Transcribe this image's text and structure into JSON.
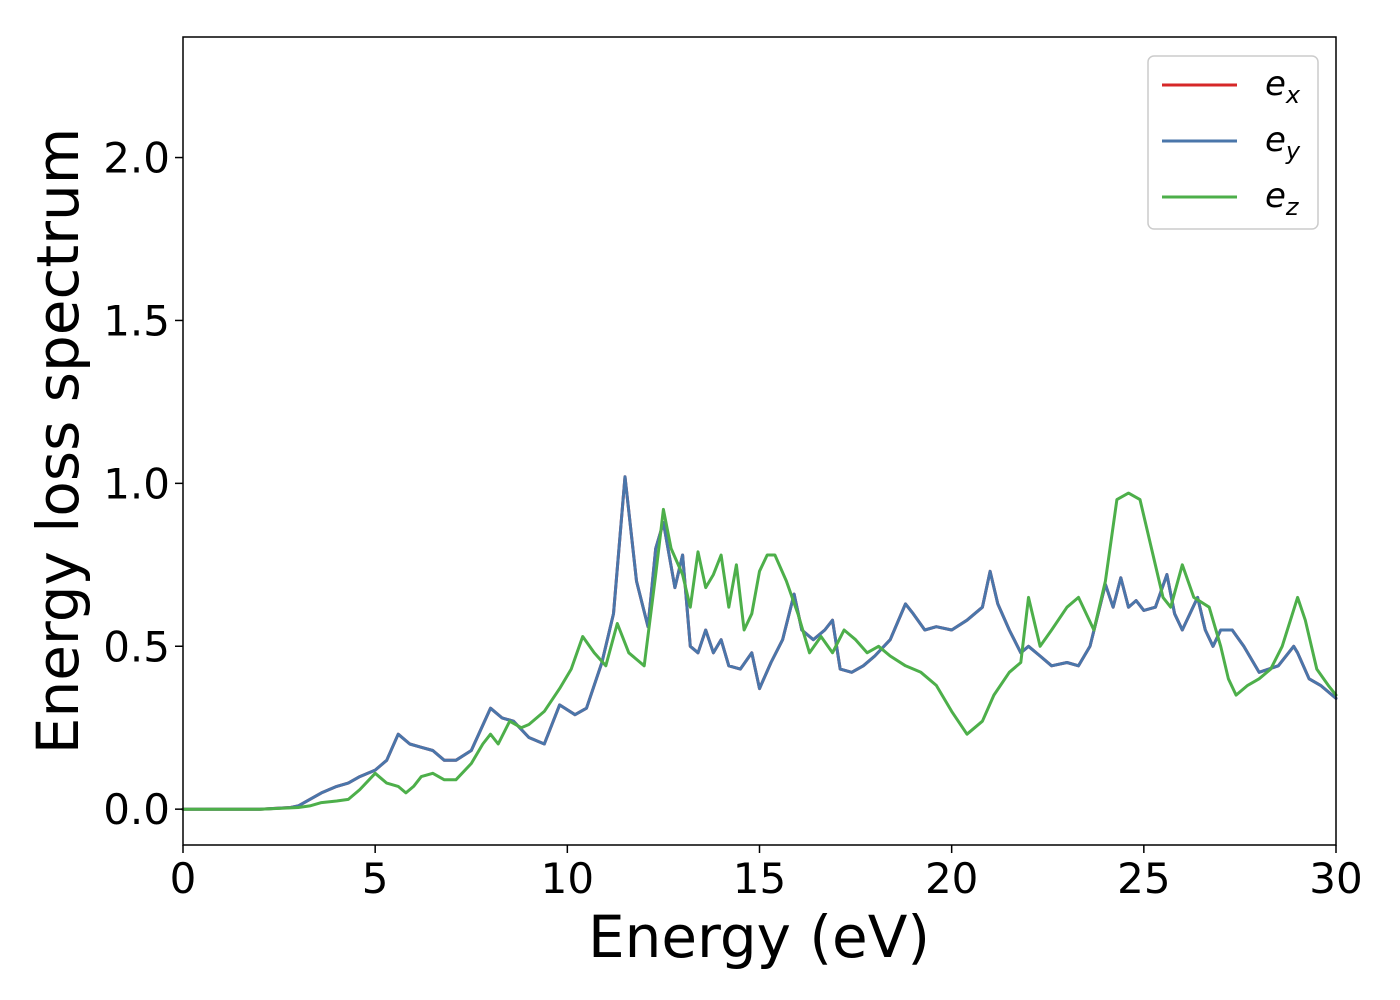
{
  "chart_data": {
    "type": "line",
    "title": "",
    "xlabel": "Energy (eV)",
    "ylabel": "Energy loss spectrum",
    "xlim": [
      0,
      30
    ],
    "ylim": [
      -0.11,
      2.37
    ],
    "xticks": [
      0,
      5,
      10,
      15,
      20,
      25,
      30
    ],
    "xtick_labels": [
      "0",
      "5",
      "10",
      "15",
      "20",
      "25",
      "30"
    ],
    "yticks": [
      0.0,
      0.5,
      1.0,
      1.5,
      2.0
    ],
    "ytick_labels": [
      "0.0",
      "0.5",
      "1.0",
      "1.5",
      "2.0"
    ],
    "grid": false,
    "legend_position": "top-right",
    "series": [
      {
        "name": "e_x",
        "legend_base": "e",
        "legend_sub": "x",
        "color": "#d62728",
        "x": [
          0,
          1,
          2,
          2.8,
          3.0,
          3.3,
          3.6,
          3.8,
          4.0,
          4.3,
          4.6,
          5.0,
          5.3,
          5.6,
          5.9,
          6.2,
          6.5,
          6.8,
          7.1,
          7.5,
          8.0,
          8.3,
          8.6,
          9.0,
          9.4,
          9.8,
          10.2,
          10.5,
          10.9,
          11.2,
          11.5,
          11.8,
          12.1,
          12.3,
          12.5,
          12.8,
          13.0,
          13.2,
          13.4,
          13.6,
          13.8,
          14.0,
          14.2,
          14.5,
          14.8,
          15.0,
          15.3,
          15.6,
          15.9,
          16.1,
          16.4,
          16.7,
          16.9,
          17.1,
          17.4,
          17.7,
          18.0,
          18.4,
          18.8,
          19.0,
          19.3,
          19.6,
          20.0,
          20.4,
          20.8,
          21.0,
          21.2,
          21.5,
          21.8,
          22.0,
          22.3,
          22.6,
          23.0,
          23.3,
          23.6,
          24.0,
          24.2,
          24.4,
          24.6,
          24.8,
          25.0,
          25.3,
          25.6,
          25.8,
          26.0,
          26.4,
          26.6,
          26.8,
          27.0,
          27.3,
          27.6,
          28.0,
          28.5,
          28.9,
          29.0,
          29.3,
          29.6,
          30.0
        ],
        "y": [
          0.0,
          0.0,
          0.0,
          0.005,
          0.01,
          0.03,
          0.05,
          0.06,
          0.07,
          0.08,
          0.1,
          0.12,
          0.15,
          0.23,
          0.2,
          0.19,
          0.18,
          0.15,
          0.15,
          0.18,
          0.31,
          0.28,
          0.27,
          0.22,
          0.2,
          0.32,
          0.29,
          0.31,
          0.45,
          0.6,
          1.02,
          0.7,
          0.56,
          0.8,
          0.88,
          0.68,
          0.78,
          0.5,
          0.48,
          0.55,
          0.48,
          0.52,
          0.44,
          0.43,
          0.48,
          0.37,
          0.45,
          0.52,
          0.66,
          0.55,
          0.52,
          0.55,
          0.58,
          0.43,
          0.42,
          0.44,
          0.47,
          0.52,
          0.63,
          0.6,
          0.55,
          0.56,
          0.55,
          0.58,
          0.62,
          0.73,
          0.63,
          0.55,
          0.48,
          0.5,
          0.47,
          0.44,
          0.45,
          0.44,
          0.5,
          0.69,
          0.62,
          0.71,
          0.62,
          0.64,
          0.61,
          0.62,
          0.72,
          0.6,
          0.55,
          0.65,
          0.55,
          0.5,
          0.55,
          0.55,
          0.5,
          0.42,
          0.44,
          0.5,
          0.48,
          0.4,
          0.38,
          0.34
        ]
      },
      {
        "name": "e_y",
        "legend_base": "e",
        "legend_sub": "y",
        "color": "#4a76aa",
        "x": [
          0,
          1,
          2,
          2.8,
          3.0,
          3.3,
          3.6,
          3.8,
          4.0,
          4.3,
          4.6,
          5.0,
          5.3,
          5.6,
          5.9,
          6.2,
          6.5,
          6.8,
          7.1,
          7.5,
          8.0,
          8.3,
          8.6,
          9.0,
          9.4,
          9.8,
          10.2,
          10.5,
          10.9,
          11.2,
          11.5,
          11.8,
          12.1,
          12.3,
          12.5,
          12.8,
          13.0,
          13.2,
          13.4,
          13.6,
          13.8,
          14.0,
          14.2,
          14.5,
          14.8,
          15.0,
          15.3,
          15.6,
          15.9,
          16.1,
          16.4,
          16.7,
          16.9,
          17.1,
          17.4,
          17.7,
          18.0,
          18.4,
          18.8,
          19.0,
          19.3,
          19.6,
          20.0,
          20.4,
          20.8,
          21.0,
          21.2,
          21.5,
          21.8,
          22.0,
          22.3,
          22.6,
          23.0,
          23.3,
          23.6,
          24.0,
          24.2,
          24.4,
          24.6,
          24.8,
          25.0,
          25.3,
          25.6,
          25.8,
          26.0,
          26.4,
          26.6,
          26.8,
          27.0,
          27.3,
          27.6,
          28.0,
          28.5,
          28.9,
          29.0,
          29.3,
          29.6,
          30.0
        ],
        "y": [
          0.0,
          0.0,
          0.0,
          0.005,
          0.01,
          0.03,
          0.05,
          0.06,
          0.07,
          0.08,
          0.1,
          0.12,
          0.15,
          0.23,
          0.2,
          0.19,
          0.18,
          0.15,
          0.15,
          0.18,
          0.31,
          0.28,
          0.27,
          0.22,
          0.2,
          0.32,
          0.29,
          0.31,
          0.45,
          0.6,
          1.02,
          0.7,
          0.56,
          0.8,
          0.88,
          0.68,
          0.78,
          0.5,
          0.48,
          0.55,
          0.48,
          0.52,
          0.44,
          0.43,
          0.48,
          0.37,
          0.45,
          0.52,
          0.66,
          0.55,
          0.52,
          0.55,
          0.58,
          0.43,
          0.42,
          0.44,
          0.47,
          0.52,
          0.63,
          0.6,
          0.55,
          0.56,
          0.55,
          0.58,
          0.62,
          0.73,
          0.63,
          0.55,
          0.48,
          0.5,
          0.47,
          0.44,
          0.45,
          0.44,
          0.5,
          0.69,
          0.62,
          0.71,
          0.62,
          0.64,
          0.61,
          0.62,
          0.72,
          0.6,
          0.55,
          0.65,
          0.55,
          0.5,
          0.55,
          0.55,
          0.5,
          0.42,
          0.44,
          0.5,
          0.48,
          0.4,
          0.38,
          0.34
        ]
      },
      {
        "name": "e_z",
        "legend_base": "e",
        "legend_sub": "z",
        "color": "#4daf4a",
        "x": [
          0,
          1,
          2,
          3.0,
          3.3,
          3.6,
          4.0,
          4.3,
          4.6,
          5.0,
          5.3,
          5.6,
          5.8,
          6.0,
          6.2,
          6.5,
          6.8,
          7.1,
          7.5,
          7.8,
          8.0,
          8.2,
          8.5,
          8.8,
          9.0,
          9.4,
          9.8,
          10.1,
          10.4,
          10.7,
          11.0,
          11.3,
          11.6,
          12.0,
          12.3,
          12.5,
          12.7,
          13.0,
          13.2,
          13.4,
          13.6,
          13.8,
          14.0,
          14.2,
          14.4,
          14.6,
          14.8,
          15.0,
          15.2,
          15.4,
          15.7,
          16.0,
          16.3,
          16.6,
          16.9,
          17.2,
          17.5,
          17.8,
          18.1,
          18.4,
          18.8,
          19.2,
          19.6,
          20.0,
          20.4,
          20.8,
          21.1,
          21.5,
          21.8,
          22.0,
          22.3,
          22.6,
          23.0,
          23.3,
          23.7,
          24.0,
          24.3,
          24.6,
          24.9,
          25.2,
          25.5,
          25.7,
          26.0,
          26.3,
          26.7,
          27.0,
          27.2,
          27.4,
          27.7,
          28.0,
          28.3,
          28.6,
          29.0,
          29.2,
          29.5,
          29.8,
          30.0
        ],
        "y": [
          0.0,
          0.0,
          0.0,
          0.005,
          0.01,
          0.02,
          0.025,
          0.03,
          0.06,
          0.11,
          0.08,
          0.07,
          0.05,
          0.07,
          0.1,
          0.11,
          0.09,
          0.09,
          0.14,
          0.2,
          0.23,
          0.2,
          0.27,
          0.25,
          0.26,
          0.3,
          0.37,
          0.43,
          0.53,
          0.48,
          0.44,
          0.57,
          0.48,
          0.44,
          0.72,
          0.92,
          0.8,
          0.72,
          0.62,
          0.79,
          0.68,
          0.72,
          0.78,
          0.62,
          0.75,
          0.55,
          0.6,
          0.73,
          0.78,
          0.78,
          0.7,
          0.6,
          0.48,
          0.53,
          0.48,
          0.55,
          0.52,
          0.48,
          0.5,
          0.47,
          0.44,
          0.42,
          0.38,
          0.3,
          0.23,
          0.27,
          0.35,
          0.42,
          0.45,
          0.65,
          0.5,
          0.55,
          0.62,
          0.65,
          0.55,
          0.7,
          0.95,
          0.97,
          0.95,
          0.8,
          0.65,
          0.62,
          0.75,
          0.65,
          0.62,
          0.5,
          0.4,
          0.35,
          0.38,
          0.4,
          0.43,
          0.5,
          0.65,
          0.58,
          0.43,
          0.38,
          0.35
        ]
      }
    ]
  }
}
